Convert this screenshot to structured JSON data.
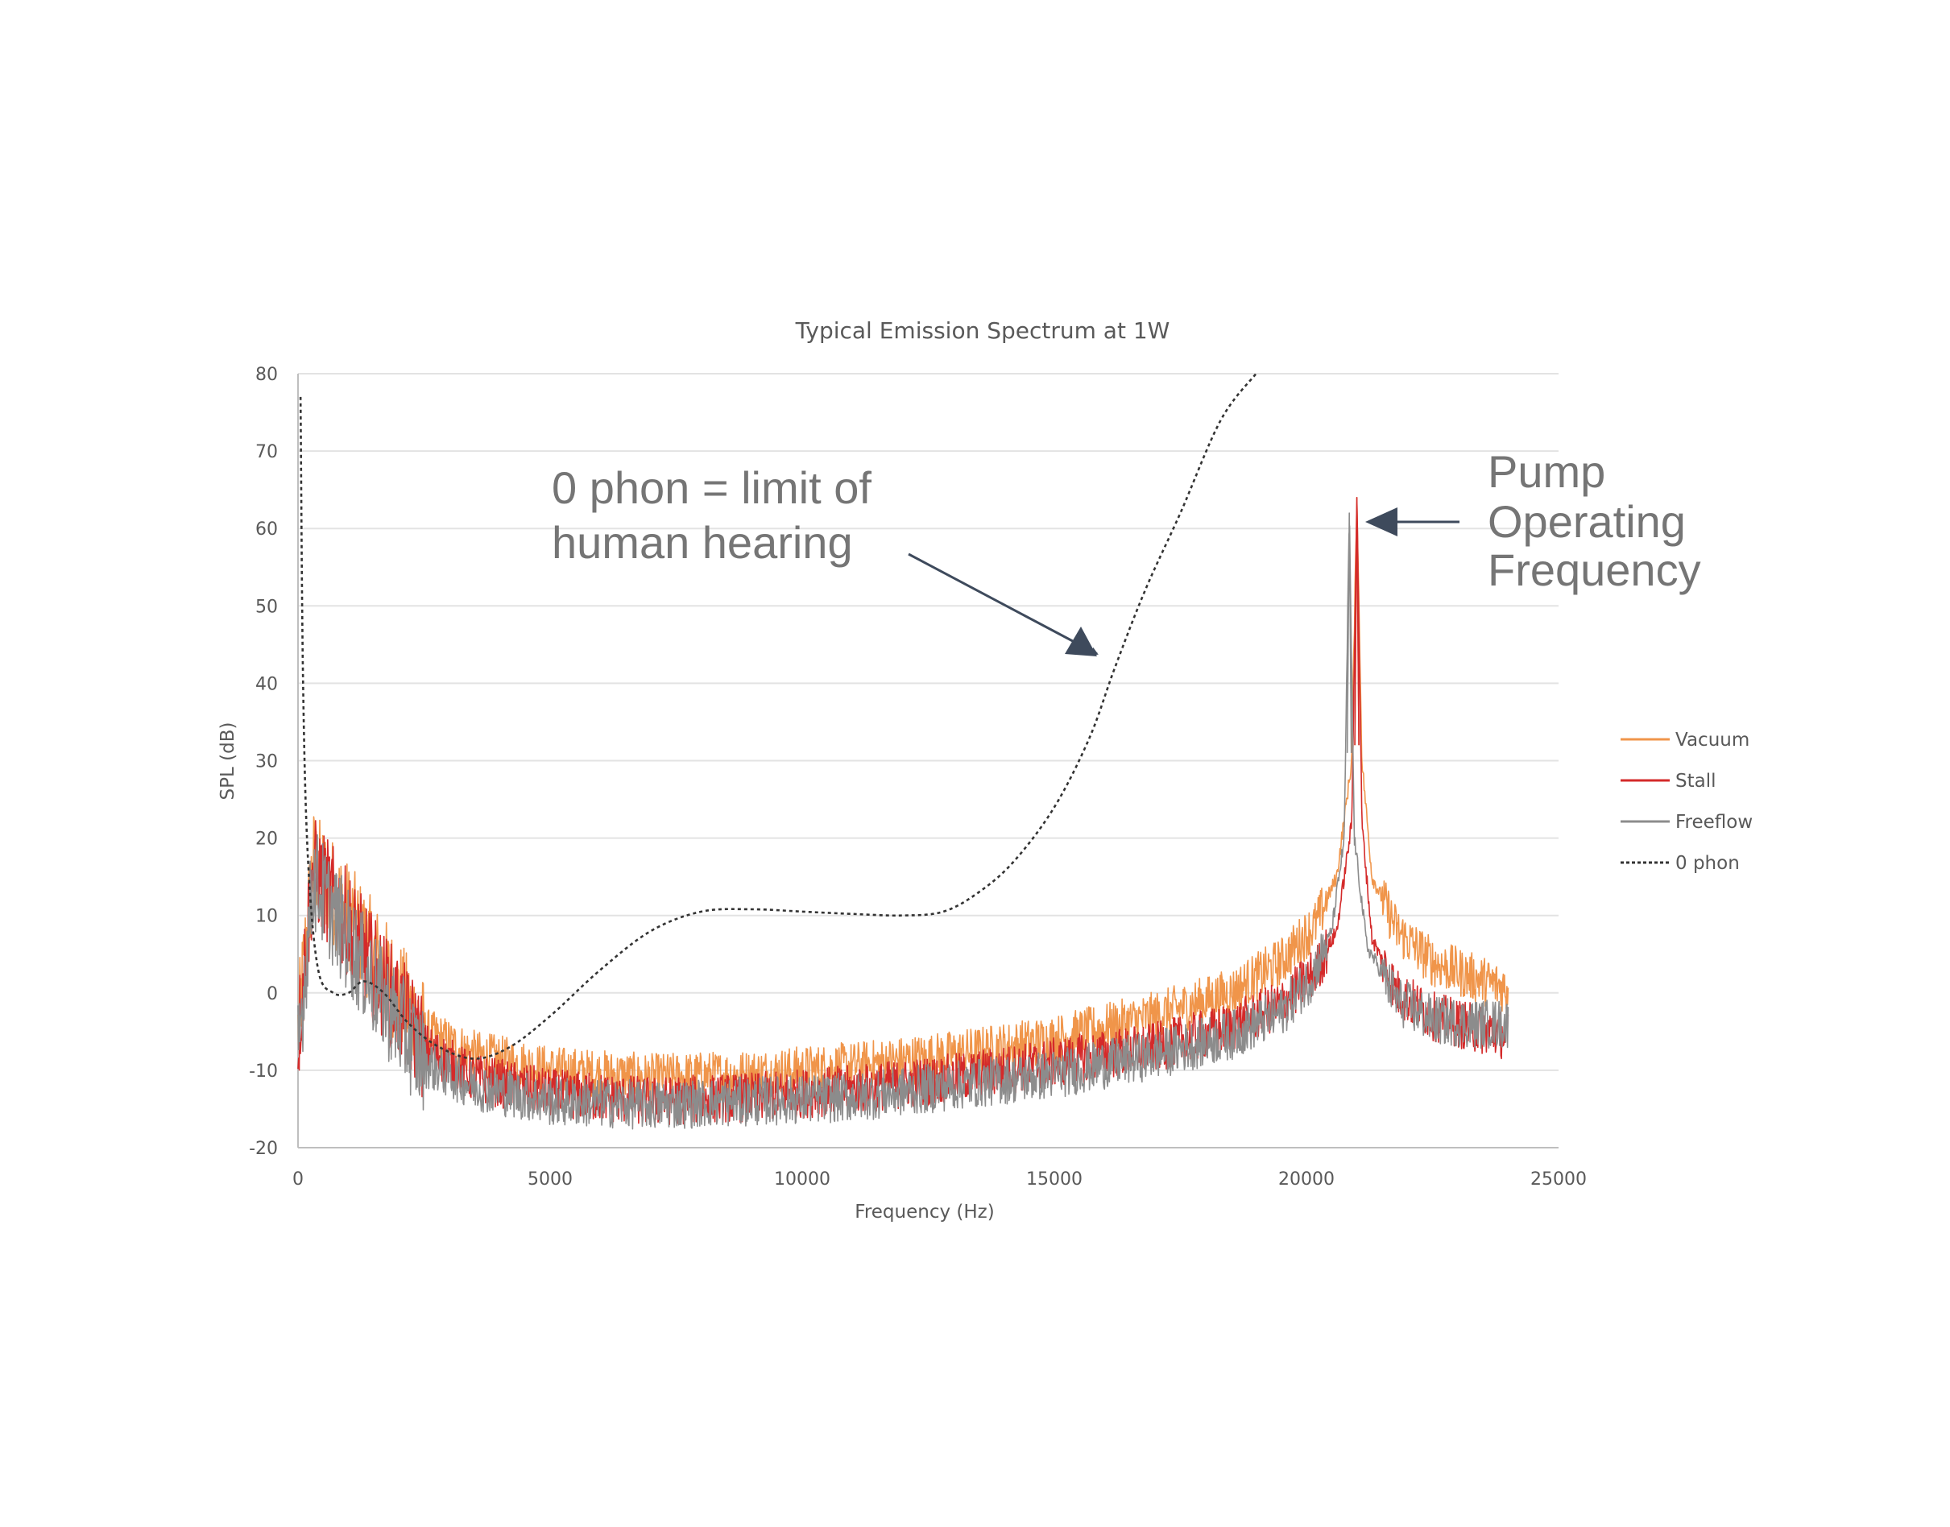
{
  "chart_data": {
    "type": "line",
    "title": "Typical Emission Spectrum at 1W",
    "xlabel": "Frequency (Hz)",
    "ylabel": "SPL (dB)",
    "xlim": [
      0,
      25000
    ],
    "ylim": [
      -20,
      80
    ],
    "x_ticks": [
      "0",
      "5000",
      "10000",
      "15000",
      "20000",
      "25000"
    ],
    "y_ticks": [
      "80",
      "70",
      "60",
      "50",
      "40",
      "30",
      "20",
      "10",
      "0",
      "-10",
      "-20"
    ],
    "grid": "horizontal",
    "legend_position": "right",
    "legend": [
      "Vacuum",
      "Stall",
      "Freeflow",
      "0 phon"
    ],
    "colors": {
      "Vacuum": "#f0954a",
      "Stall": "#d42a2a",
      "Freeflow": "#8c8c8c",
      "0 phon": "#333333",
      "gridline": "#e3e3e3",
      "arrow": "#3e4a5c"
    },
    "series": [
      {
        "name": "Vacuum",
        "style": "noisy-line",
        "x": [
          0,
          300,
          800,
          1500,
          2500,
          3500,
          5000,
          7000,
          9000,
          11000,
          13000,
          15000,
          17000,
          18500,
          19500,
          20200,
          20600,
          20900,
          21000,
          21100,
          21300,
          21800,
          22500,
          23300,
          24000
        ],
        "y": [
          -5,
          17,
          12,
          5,
          -5,
          -8,
          -10,
          -11,
          -10.5,
          -9.5,
          -8,
          -6,
          -3,
          0,
          4,
          9,
          15,
          30,
          64,
          30,
          15,
          8,
          4,
          2,
          0.5
        ]
      },
      {
        "name": "Stall",
        "style": "noisy-line",
        "x": [
          0,
          300,
          800,
          1500,
          2500,
          3500,
          5000,
          7000,
          9000,
          11000,
          13000,
          15000,
          17000,
          18500,
          19500,
          20200,
          20600,
          20900,
          21000,
          21100,
          21300,
          21800,
          22500,
          23300,
          24000
        ],
        "y": [
          -6,
          16,
          11,
          3,
          -7,
          -11,
          -13,
          -14,
          -13.5,
          -12.5,
          -11,
          -9,
          -7,
          -4.5,
          -1.5,
          3,
          8,
          22,
          64,
          22,
          7,
          0,
          -3,
          -4.5,
          -5.5
        ]
      },
      {
        "name": "Freeflow",
        "style": "noisy-line",
        "x": [
          0,
          300,
          800,
          1500,
          2500,
          3500,
          5000,
          7000,
          9000,
          11000,
          13000,
          15000,
          17000,
          18500,
          19500,
          20100,
          20500,
          20750,
          20850,
          20950,
          21200,
          21800,
          22500,
          23300,
          24000
        ],
        "y": [
          -8,
          15,
          9,
          1,
          -9,
          -12,
          -14,
          -14.5,
          -14,
          -13.5,
          -12,
          -10.5,
          -8,
          -5.5,
          -2.5,
          2,
          8,
          20,
          62,
          20,
          6,
          -1,
          -3.5,
          -4,
          -4
        ]
      },
      {
        "name": "0 phon",
        "style": "dotted",
        "x": [
          50,
          100,
          200,
          400,
          700,
          1000,
          1300,
          1700,
          2200,
          2800,
          3500,
          4200,
          5000,
          6000,
          7000,
          8000,
          9000,
          10000,
          11000,
          12000,
          12800,
          13500,
          14200,
          15000,
          15700,
          16200,
          16800,
          17500,
          18300,
          19000
        ],
        "y": [
          77,
          40,
          17,
          3,
          0,
          0,
          1.5,
          0,
          -4,
          -7,
          -8.5,
          -7,
          -3,
          3,
          8,
          10.5,
          10.8,
          10.5,
          10.2,
          10,
          10.5,
          13,
          17,
          24,
          33,
          42,
          52,
          62,
          74,
          80
        ]
      }
    ],
    "annotations": [
      {
        "lines": [
          "0 phon = limit of",
          "human hearing"
        ],
        "points_to": "0 phon"
      },
      {
        "lines": [
          "Pump",
          "Operating",
          "Frequency"
        ],
        "points_to": "peak near 21000 Hz"
      }
    ]
  }
}
